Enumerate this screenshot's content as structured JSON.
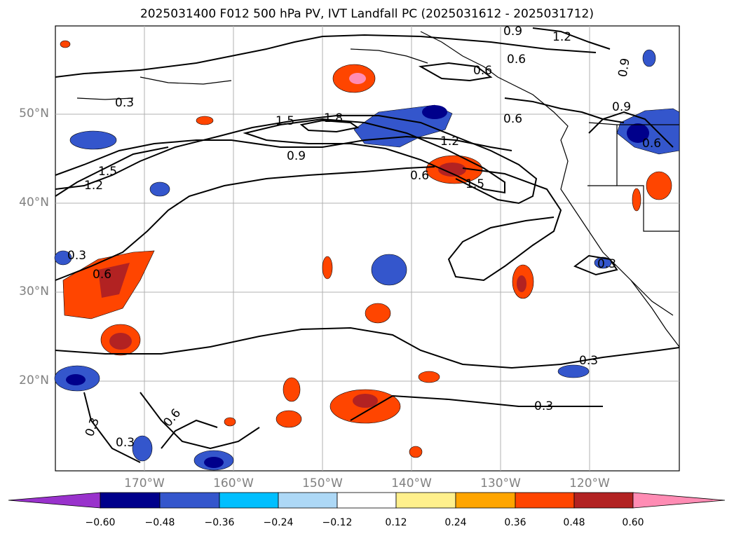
{
  "title": "2025031400 F012 500 hPa PV, IVT Landfall PC (2025031612 - 2025031712)",
  "lat_labels": [
    "50°N",
    "40°N",
    "30°N",
    "20°N"
  ],
  "lon_labels": [
    "170°W",
    "160°W",
    "150°W",
    "140°W",
    "130°W",
    "120°W"
  ],
  "contour_labels": [
    "0.3",
    "1.5",
    "1.8",
    "1.2",
    "0.9",
    "0.6",
    "1.2",
    "0.6",
    "1.5",
    "0.9",
    "1.5",
    "1.2",
    "0.3",
    "0.6",
    "0.9",
    "0.6",
    "0.6",
    "0.9",
    "0.6",
    "0.3",
    "0.3",
    "0.3",
    "0.6",
    "0.3",
    "0.3"
  ],
  "colorbar": {
    "ticks": [
      "−0.60",
      "−0.48",
      "−0.36",
      "−0.24",
      "−0.12",
      "0.12",
      "0.24",
      "0.36",
      "0.48",
      "0.60"
    ],
    "colors": [
      "#9932cc",
      "#00008b",
      "#3456cc",
      "#00bfff",
      "#add8f6",
      "#ffffff",
      "#fff08c",
      "#ffa500",
      "#ff4500",
      "#b22222",
      "#ff8cb4"
    ]
  },
  "colors": {
    "grid": "#b0b0b0",
    "contour": "#000000",
    "frame": "#000000"
  }
}
